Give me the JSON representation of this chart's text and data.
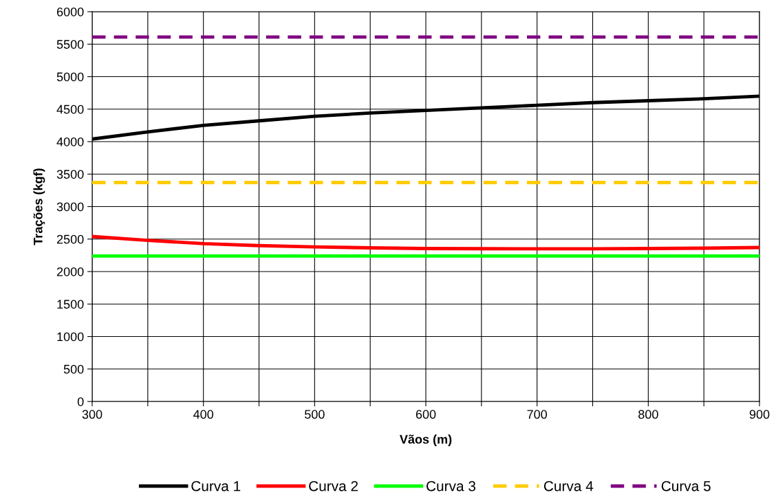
{
  "chart_data": {
    "type": "line",
    "xlabel": "Vãos (m)",
    "ylabel": "Trações (kgf)",
    "x": [
      300,
      350,
      400,
      450,
      500,
      550,
      600,
      650,
      700,
      750,
      800,
      850,
      900
    ],
    "series": [
      {
        "name": "Curva 1",
        "color": "#000000",
        "line_style": "solid",
        "values": [
          4040,
          4150,
          4250,
          4320,
          4390,
          4440,
          4480,
          4520,
          4560,
          4600,
          4630,
          4660,
          4700
        ]
      },
      {
        "name": "Curva 2",
        "color": "#ff0000",
        "line_style": "solid",
        "values": [
          2540,
          2480,
          2430,
          2400,
          2380,
          2365,
          2355,
          2352,
          2350,
          2350,
          2355,
          2360,
          2370
        ]
      },
      {
        "name": "Curva 3",
        "color": "#00ff00",
        "line_style": "solid",
        "values": [
          2240,
          2240,
          2240,
          2240,
          2240,
          2240,
          2240,
          2240,
          2240,
          2240,
          2240,
          2240,
          2240
        ]
      },
      {
        "name": "Curva 4",
        "color": "#ffcc00",
        "line_style": "dashed",
        "values": [
          3370,
          3370,
          3370,
          3370,
          3370,
          3370,
          3370,
          3370,
          3370,
          3370,
          3370,
          3370,
          3370
        ]
      },
      {
        "name": "Curva 5",
        "color": "#800080",
        "line_style": "dashed",
        "values": [
          5610,
          5610,
          5610,
          5610,
          5610,
          5610,
          5610,
          5610,
          5610,
          5610,
          5610,
          5610,
          5610
        ]
      }
    ],
    "xlim": [
      300,
      900
    ],
    "xticks": [
      300,
      {
        "value": 350,
        "label": null
      },
      400,
      {
        "value": 450,
        "label": null
      },
      500,
      {
        "value": 550,
        "label": null
      },
      600,
      {
        "value": 650,
        "label": null
      },
      700,
      {
        "value": 750,
        "label": null
      },
      800,
      {
        "value": 850,
        "label": null
      },
      900
    ],
    "ylim": [
      0,
      6000
    ],
    "yticks": [
      0,
      500,
      1000,
      1500,
      2000,
      2500,
      3000,
      3500,
      4000,
      4500,
      5000,
      5500,
      6000
    ],
    "grid": true,
    "legend": "bottom",
    "marker": "none"
  }
}
